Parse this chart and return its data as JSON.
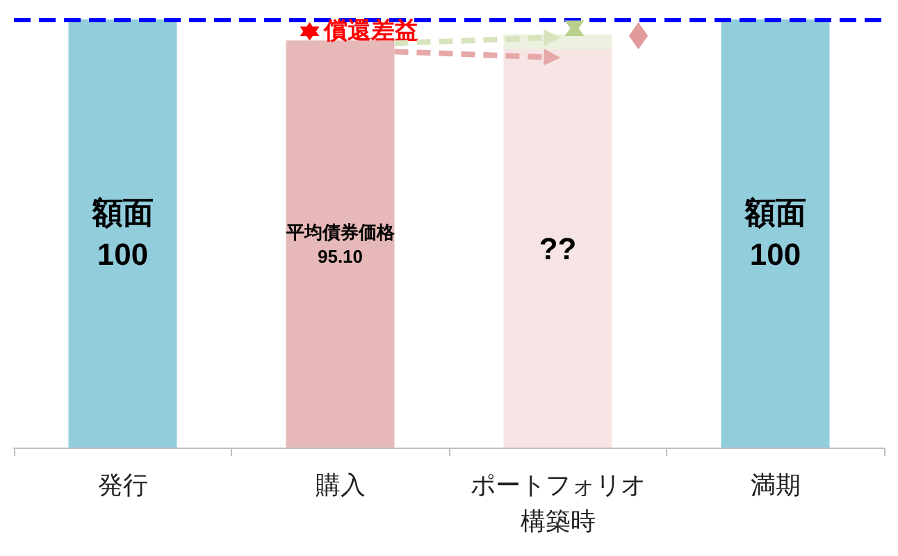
{
  "chart_data": {
    "type": "bar",
    "categories": [
      "発行",
      "購入",
      "ポートフォリオ構築時",
      "満期"
    ],
    "stacked": true,
    "series": [
      {
        "colors": [
          "#92cddc",
          "#e6b9b8",
          "#f7e4e4",
          "#92cddc"
        ],
        "values": [
          100,
          95.1,
          93,
          100
        ],
        "value_labels": [
          "額面\n100",
          "平均債券価格\n95.10",
          "??",
          "額面\n100"
        ]
      },
      {
        "color": "#ebf1de",
        "values": [
          null,
          null,
          3.5,
          null
        ]
      }
    ],
    "ref_lines": [
      {
        "axis": "y",
        "value": 100,
        "color": "#0000ff",
        "line_style": "dashed"
      }
    ],
    "annotations": [
      "償還差益"
    ]
  }
}
